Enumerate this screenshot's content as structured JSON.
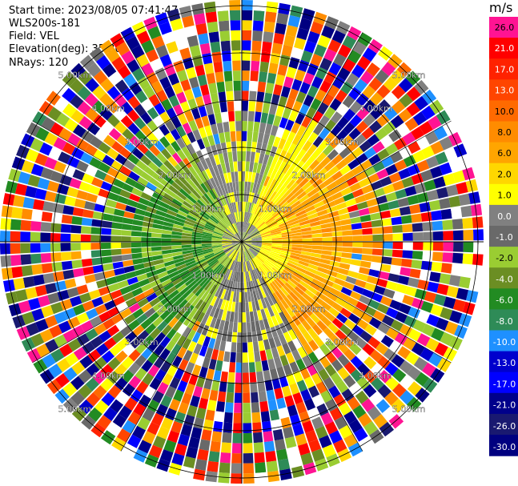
{
  "header": {
    "start_time": "Start time: 2023/08/05 07:41:47",
    "instrument": "WLS200s-181",
    "field": "Field: VEL",
    "elevation": "Elevation(deg): 35.30",
    "nrays": "NRays: 120"
  },
  "chart_data": {
    "type": "heatmap",
    "projection": "polar (PPI scan)",
    "field": "VEL",
    "units": "m/s",
    "n_rays": 120,
    "range_rings_km": [
      1.0,
      2.0,
      3.0,
      4.0,
      5.0
    ],
    "ring_labels": [
      "1.00km",
      "2.00km",
      "3.00km",
      "4.00km",
      "5.00km"
    ],
    "colorbar": {
      "label": "m/s",
      "tick_labels": [
        "26.0",
        "21.0",
        "17.0",
        "13.0",
        "10.0",
        "8.0",
        "6.0",
        "2.0",
        "1.0",
        "0.0",
        "-1.0",
        "-2.0",
        "-4.0",
        "-6.0",
        "-8.0",
        "-10.0",
        "-13.0",
        "-17.0",
        "-21.0",
        "-26.0",
        "-30.0"
      ],
      "colors": [
        "#ff1493",
        "#ff0000",
        "#ff2200",
        "#ff4500",
        "#ff6a00",
        "#ff8c00",
        "#ffa500",
        "#ffd700",
        "#ffff00",
        "#808080",
        "#696969",
        "#9acd32",
        "#6b8e23",
        "#228b22",
        "#2e8b57",
        "#1e90ff",
        "#0000cd",
        "#0000ff",
        "#00008b",
        "#191970",
        "#000080"
      ]
    },
    "pattern": {
      "inner_radius_km": 2.3,
      "toward_sector": "west / southwest (green, -1 to -8 m/s)",
      "away_sector": "east / northeast (yellow-orange, +1 to +8 m/s)",
      "near_zero_bands": "north and south (gray)",
      "outer_region": "noisy random velocities beyond ~2.5 km"
    }
  }
}
